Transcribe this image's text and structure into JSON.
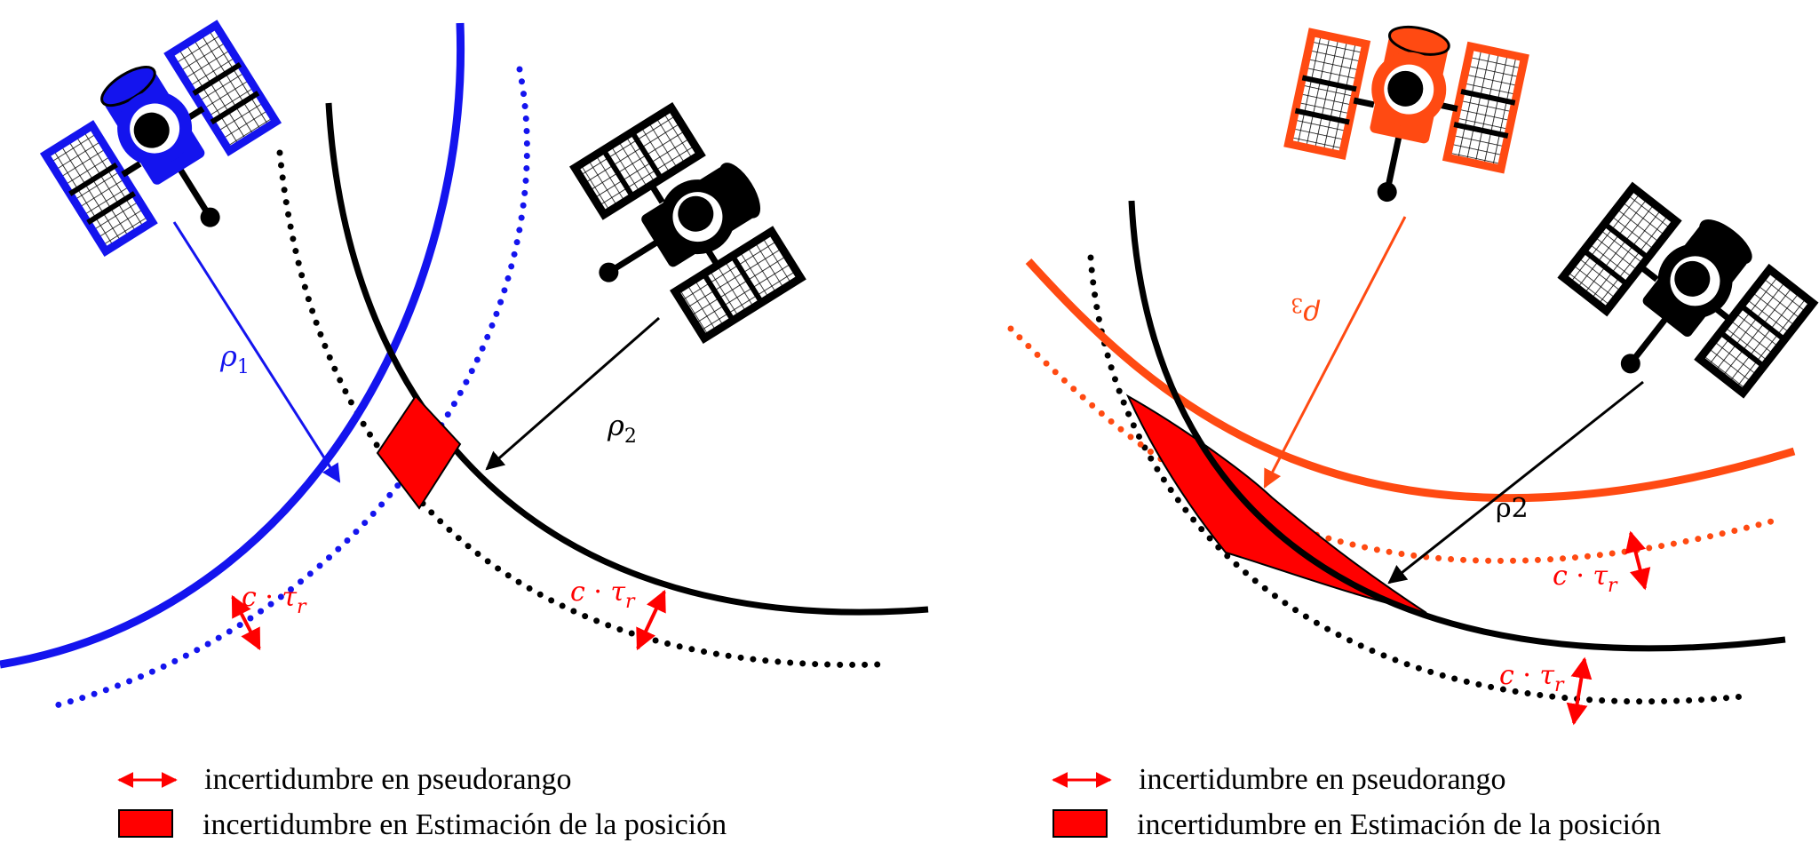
{
  "colors": {
    "blue": "#1414ee",
    "black": "#000000",
    "orange": "#ff4a12",
    "red": "#ff0000"
  },
  "left_panel": {
    "rho1": {
      "base": "ρ",
      "sub": "1"
    },
    "rho2": {
      "base": "ρ",
      "sub": "2"
    },
    "uncertainty_label_a": {
      "c": "c",
      "dot": " · ",
      "tau": "τ",
      "sub": "r"
    },
    "uncertainty_label_b": {
      "c": "c",
      "dot": " · ",
      "tau": "τ",
      "sub": "r"
    },
    "legend": {
      "pseudorange": "incertidumbre en pseudorango",
      "position": "incertidumbre en Estimación de la posición"
    }
  },
  "right_panel": {
    "rho3": {
      "base": "ρ",
      "sub": "3"
    },
    "rho2": {
      "text": "ρ2"
    },
    "uncertainty_label_a": {
      "c": "c",
      "dot": " · ",
      "tau": "τ",
      "sub": "r"
    },
    "uncertainty_label_b": {
      "c": "c",
      "dot": " · ",
      "tau": "τ",
      "sub": "r"
    },
    "legend": {
      "pseudorange": "incertidumbre en pseudorango",
      "position": "incertidumbre en Estimación de la posición"
    }
  },
  "satellites": [
    {
      "name": "satellite-blue",
      "color": "blue"
    },
    {
      "name": "satellite-black-left",
      "color": "black"
    },
    {
      "name": "satellite-orange",
      "color": "orange"
    },
    {
      "name": "satellite-black-right",
      "color": "black"
    }
  ]
}
